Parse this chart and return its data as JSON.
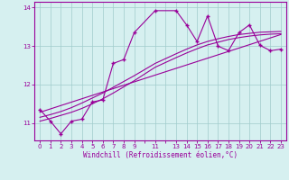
{
  "xlabel": "Windchill (Refroidissement éolien,°C)",
  "background_color": "#d6f0f0",
  "line_color": "#990099",
  "xlim": [
    -0.5,
    23.5
  ],
  "ylim": [
    10.55,
    14.15
  ],
  "yticks": [
    11,
    12,
    13,
    14
  ],
  "xtick_labels": [
    "0",
    "1",
    "2",
    "3",
    "4",
    "5",
    "6",
    "7",
    "8",
    "9",
    "",
    "11",
    "",
    "13",
    "14",
    "15",
    "16",
    "17",
    "18",
    "19",
    "20",
    "21",
    "22",
    "23"
  ],
  "xtick_positions": [
    0,
    1,
    2,
    3,
    4,
    5,
    6,
    7,
    8,
    9,
    10,
    11,
    12,
    13,
    14,
    15,
    16,
    17,
    18,
    19,
    20,
    21,
    22,
    23
  ],
  "series1_x": [
    0,
    1,
    2,
    3,
    4,
    5,
    6,
    7,
    8,
    9,
    11,
    13,
    14,
    15,
    16,
    17,
    18,
    19,
    20,
    21,
    22,
    23
  ],
  "series1_y": [
    11.35,
    11.05,
    10.72,
    11.05,
    11.1,
    11.55,
    11.6,
    12.55,
    12.65,
    13.35,
    13.92,
    13.92,
    13.55,
    13.12,
    13.78,
    13.0,
    12.88,
    13.35,
    13.55,
    13.02,
    12.88,
    12.92
  ],
  "trend1_x": [
    0,
    1,
    2,
    3,
    4,
    5,
    6,
    7,
    8,
    9,
    11,
    13,
    14,
    15,
    16,
    17,
    18,
    19,
    20,
    21,
    22,
    23
  ],
  "trend1_y": [
    11.05,
    11.12,
    11.2,
    11.28,
    11.38,
    11.5,
    11.63,
    11.78,
    11.94,
    12.1,
    12.45,
    12.7,
    12.82,
    12.93,
    13.03,
    13.1,
    13.17,
    13.22,
    13.26,
    13.29,
    13.31,
    13.32
  ],
  "trend2_x": [
    0,
    1,
    2,
    3,
    4,
    5,
    6,
    7,
    8,
    9,
    11,
    13,
    14,
    15,
    16,
    17,
    18,
    19,
    20,
    21,
    22,
    23
  ],
  "trend2_y": [
    11.15,
    11.22,
    11.3,
    11.4,
    11.52,
    11.65,
    11.78,
    11.93,
    12.08,
    12.23,
    12.55,
    12.8,
    12.92,
    13.03,
    13.12,
    13.19,
    13.25,
    13.3,
    13.33,
    13.36,
    13.37,
    13.38
  ],
  "trend3_x": [
    0,
    23
  ],
  "trend3_y": [
    11.28,
    13.3
  ]
}
